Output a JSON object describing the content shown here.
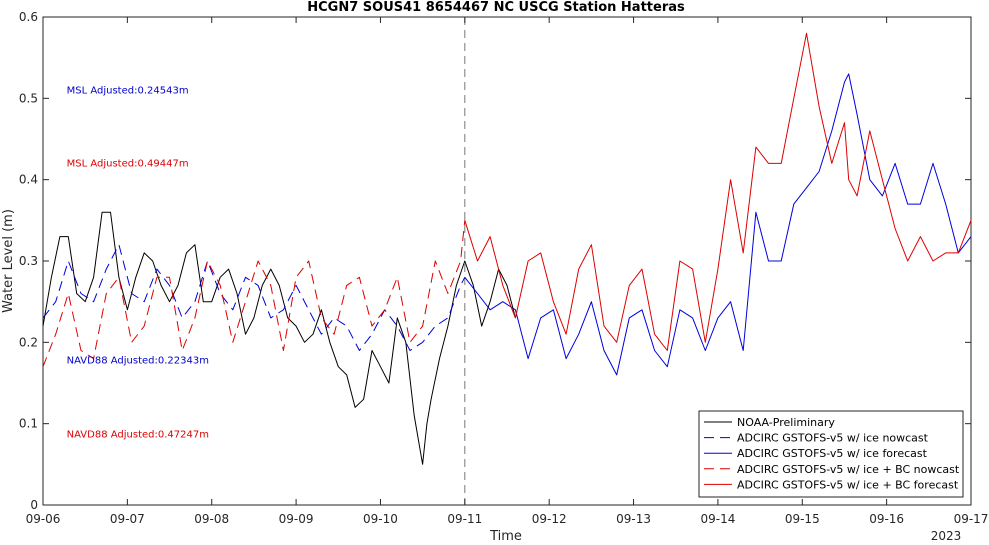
{
  "chart_data": {
    "type": "line",
    "title": "HCGN7 SOUS41 8654467 NC USCG Station Hatteras",
    "xlabel": "Time",
    "ylabel": "Water Level (m)",
    "x_ticks": [
      "09-06",
      "09-07",
      "09-08",
      "09-09",
      "09-10",
      "09-11",
      "09-12",
      "09-13",
      "09-14",
      "09-15",
      "09-16",
      "09-17"
    ],
    "x_year": "2023",
    "xlim": [
      0,
      11
    ],
    "ylim": [
      0,
      0.6
    ],
    "y_ticks": [
      "0",
      "0.1",
      "0.2",
      "0.3",
      "0.4",
      "0.5",
      "0.6"
    ],
    "now_marker_x": 5,
    "grid": false,
    "legend_position": "bottom-right",
    "annotations": [
      {
        "text": "MSL Adjusted:0.24543m",
        "x": 0.28,
        "y": 0.511,
        "color": "#0000cc"
      },
      {
        "text": "MSL Adjusted:0.49447m",
        "x": 0.28,
        "y": 0.421,
        "color": "#dd0000"
      },
      {
        "text": "NAVD88 Adjusted:0.22343m",
        "x": 0.28,
        "y": 0.179,
        "color": "#0000cc"
      },
      {
        "text": "NAVD88 Adjusted:0.47247m",
        "x": 0.28,
        "y": 0.088,
        "color": "#dd0000"
      }
    ],
    "series": [
      {
        "name": "NOAA-Preliminary",
        "color": "#000000",
        "dash": "solid",
        "x": [
          0,
          0.1,
          0.2,
          0.3,
          0.4,
          0.5,
          0.6,
          0.7,
          0.8,
          0.9,
          1.0,
          1.1,
          1.2,
          1.3,
          1.4,
          1.5,
          1.6,
          1.7,
          1.8,
          1.9,
          2.0,
          2.1,
          2.2,
          2.3,
          2.4,
          2.5,
          2.6,
          2.7,
          2.8,
          2.9,
          3.0,
          3.1,
          3.2,
          3.3,
          3.4,
          3.5,
          3.6,
          3.7,
          3.8,
          3.9,
          4.0,
          4.1,
          4.2,
          4.3,
          4.4,
          4.5,
          4.55,
          4.6,
          4.7,
          4.8,
          4.9,
          5.0,
          5.1,
          5.2,
          5.3,
          5.4,
          5.5,
          5.6
        ],
        "y": [
          0.22,
          0.28,
          0.33,
          0.33,
          0.26,
          0.25,
          0.28,
          0.36,
          0.36,
          0.28,
          0.24,
          0.28,
          0.31,
          0.3,
          0.27,
          0.25,
          0.27,
          0.31,
          0.32,
          0.25,
          0.25,
          0.28,
          0.29,
          0.26,
          0.21,
          0.23,
          0.27,
          0.29,
          0.27,
          0.23,
          0.22,
          0.2,
          0.21,
          0.24,
          0.2,
          0.17,
          0.16,
          0.12,
          0.13,
          0.19,
          0.17,
          0.15,
          0.23,
          0.2,
          0.11,
          0.05,
          0.1,
          0.13,
          0.18,
          0.22,
          0.27,
          0.3,
          0.27,
          0.22,
          0.25,
          0.29,
          0.27,
          0.23
        ]
      },
      {
        "name": "ADCIRC GSTOFS-v5 w/ ice nowcast",
        "color": "#0000dd",
        "dash": "long-dash",
        "x": [
          0,
          0.15,
          0.3,
          0.45,
          0.6,
          0.75,
          0.9,
          1.05,
          1.2,
          1.35,
          1.5,
          1.65,
          1.8,
          1.95,
          2.1,
          2.25,
          2.4,
          2.55,
          2.7,
          2.85,
          3.0,
          3.15,
          3.3,
          3.45,
          3.6,
          3.75,
          3.9,
          4.05,
          4.2,
          4.35,
          4.5,
          4.65,
          4.8,
          4.95,
          5.0
        ],
        "y": [
          0.23,
          0.25,
          0.3,
          0.26,
          0.25,
          0.29,
          0.32,
          0.26,
          0.25,
          0.29,
          0.27,
          0.23,
          0.25,
          0.3,
          0.26,
          0.24,
          0.28,
          0.27,
          0.23,
          0.24,
          0.27,
          0.24,
          0.21,
          0.23,
          0.22,
          0.19,
          0.21,
          0.24,
          0.22,
          0.19,
          0.2,
          0.22,
          0.23,
          0.27,
          0.28
        ]
      },
      {
        "name": "ADCIRC GSTOFS-v5 w/ ice forecast",
        "color": "#0000dd",
        "dash": "solid",
        "x": [
          5.0,
          5.15,
          5.3,
          5.45,
          5.6,
          5.75,
          5.9,
          6.05,
          6.2,
          6.35,
          6.5,
          6.65,
          6.8,
          6.95,
          7.1,
          7.25,
          7.4,
          7.55,
          7.7,
          7.85,
          8.0,
          8.15,
          8.3,
          8.45,
          8.6,
          8.75,
          8.9,
          9.05,
          9.2,
          9.35,
          9.5,
          9.55,
          9.65,
          9.8,
          9.95,
          10.1,
          10.25,
          10.4,
          10.55,
          10.7,
          10.85,
          11.0
        ],
        "y": [
          0.28,
          0.26,
          0.24,
          0.25,
          0.24,
          0.18,
          0.23,
          0.24,
          0.18,
          0.21,
          0.25,
          0.19,
          0.16,
          0.23,
          0.24,
          0.19,
          0.17,
          0.24,
          0.23,
          0.19,
          0.23,
          0.25,
          0.19,
          0.36,
          0.3,
          0.3,
          0.37,
          0.39,
          0.41,
          0.46,
          0.52,
          0.53,
          0.48,
          0.4,
          0.38,
          0.42,
          0.37,
          0.37,
          0.42,
          0.37,
          0.31,
          0.33
        ]
      },
      {
        "name": "ADCIRC GSTOFS-v5 w/ ice + BC nowcast",
        "color": "#dd0000",
        "dash": "long-dash",
        "x": [
          0,
          0.15,
          0.3,
          0.45,
          0.6,
          0.75,
          0.9,
          1.05,
          1.2,
          1.35,
          1.5,
          1.65,
          1.8,
          1.95,
          2.1,
          2.25,
          2.4,
          2.55,
          2.7,
          2.85,
          3.0,
          3.15,
          3.3,
          3.45,
          3.6,
          3.75,
          3.9,
          4.05,
          4.2,
          4.35,
          4.5,
          4.65,
          4.8,
          4.95,
          5.0
        ],
        "y": [
          0.17,
          0.21,
          0.26,
          0.19,
          0.18,
          0.26,
          0.28,
          0.2,
          0.22,
          0.28,
          0.28,
          0.19,
          0.23,
          0.3,
          0.27,
          0.2,
          0.25,
          0.3,
          0.27,
          0.19,
          0.28,
          0.3,
          0.23,
          0.21,
          0.27,
          0.28,
          0.22,
          0.24,
          0.28,
          0.2,
          0.22,
          0.3,
          0.26,
          0.3,
          0.35
        ]
      },
      {
        "name": "ADCIRC GSTOFS-v5 w/ ice + BC forecast",
        "color": "#dd0000",
        "dash": "solid",
        "x": [
          5.0,
          5.15,
          5.3,
          5.45,
          5.6,
          5.75,
          5.9,
          6.05,
          6.2,
          6.35,
          6.5,
          6.65,
          6.8,
          6.95,
          7.1,
          7.25,
          7.4,
          7.55,
          7.7,
          7.85,
          8.0,
          8.15,
          8.3,
          8.45,
          8.6,
          8.75,
          8.9,
          9.05,
          9.2,
          9.35,
          9.5,
          9.55,
          9.65,
          9.8,
          9.95,
          10.1,
          10.25,
          10.4,
          10.55,
          10.7,
          10.85,
          11.0
        ],
        "y": [
          0.35,
          0.3,
          0.33,
          0.27,
          0.23,
          0.3,
          0.31,
          0.25,
          0.21,
          0.29,
          0.32,
          0.22,
          0.2,
          0.27,
          0.29,
          0.21,
          0.19,
          0.3,
          0.29,
          0.2,
          0.29,
          0.4,
          0.31,
          0.44,
          0.42,
          0.42,
          0.5,
          0.58,
          0.49,
          0.42,
          0.47,
          0.4,
          0.38,
          0.46,
          0.4,
          0.34,
          0.3,
          0.33,
          0.3,
          0.31,
          0.31,
          0.35
        ]
      }
    ]
  }
}
